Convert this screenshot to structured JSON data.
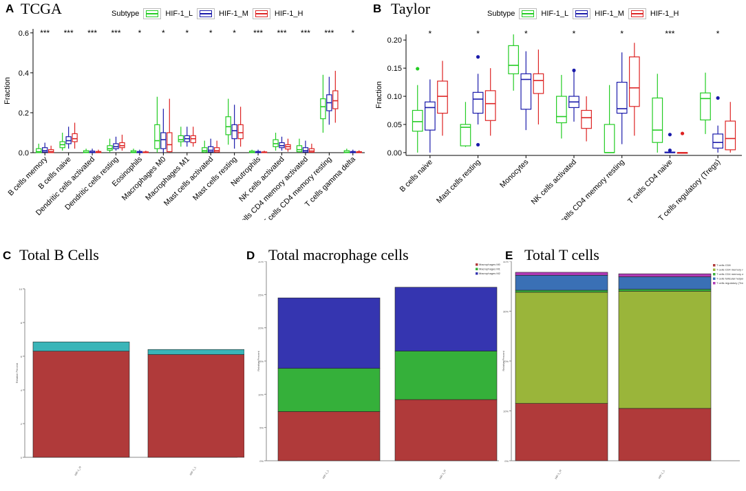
{
  "colors": {
    "L": "#22cc22",
    "M": "#1a1aaa",
    "H": "#dd2222"
  },
  "subtype_label": "Subtype",
  "subtypes": [
    "HIF-1_L",
    "HIF-1_M",
    "HIF-1_H"
  ],
  "panels": {
    "A": {
      "letter": "A",
      "title": "TCGA"
    },
    "B": {
      "letter": "B",
      "title": "Taylor"
    },
    "C": {
      "letter": "C",
      "title": "Total B Cells"
    },
    "D": {
      "letter": "D",
      "title": "Total macrophage cells"
    },
    "E": {
      "letter": "E",
      "title": "Total T cells"
    }
  },
  "chart_data": [
    {
      "id": "A",
      "type": "box",
      "title": "TCGA",
      "ylabel": "Fraction",
      "ylim": [
        0,
        0.62
      ],
      "yticks": [
        0.0,
        0.2,
        0.4,
        0.6
      ],
      "yticklabels": [
        "0.0",
        "0.2",
        "0.4",
        "0.6"
      ],
      "categories": [
        "B cells memory",
        "B cells naive",
        "Dendritic cells activated",
        "Dendritic cells resting",
        "Eosinophils",
        "Macrophages M0",
        "Macrophages M1",
        "Mast cells activated",
        "Mast cells resting",
        "Neutrophils",
        "NK cells activated",
        "T cells CD4 memory activated",
        "T cells CD4 memory resting",
        "T cells gamma delta"
      ],
      "significance": [
        "***",
        "***",
        "***",
        "***",
        "*",
        "*",
        "*",
        "*",
        "*",
        "***",
        "***",
        "***",
        "***",
        "*"
      ],
      "series": [
        {
          "name": "HIF-1_L",
          "boxes": [
            [
              0,
              0,
              0.005,
              0.02,
              0.045
            ],
            [
              0.01,
              0.025,
              0.04,
              0.055,
              0.1
            ],
            [
              0,
              0,
              0.002,
              0.01,
              0.02
            ],
            [
              0,
              0.012,
              0.02,
              0.035,
              0.07
            ],
            [
              0,
              0,
              0.003,
              0.01,
              0.02
            ],
            [
              0,
              0.02,
              0.06,
              0.14,
              0.28
            ],
            [
              0.03,
              0.055,
              0.065,
              0.085,
              0.13
            ],
            [
              0,
              0.003,
              0.01,
              0.025,
              0.06
            ],
            [
              0.04,
              0.09,
              0.13,
              0.18,
              0.27
            ],
            [
              0,
              0,
              0.002,
              0.008,
              0.015
            ],
            [
              0.01,
              0.03,
              0.045,
              0.065,
              0.1
            ],
            [
              0,
              0.005,
              0.015,
              0.035,
              0.07
            ],
            [
              0.1,
              0.17,
              0.23,
              0.27,
              0.39
            ],
            [
              0,
              0,
              0.002,
              0.01,
              0.02
            ]
          ]
        },
        {
          "name": "HIF-1_M",
          "boxes": [
            [
              0,
              0.003,
              0.01,
              0.025,
              0.05
            ],
            [
              0.02,
              0.045,
              0.06,
              0.08,
              0.13
            ],
            [
              0,
              0,
              0.002,
              0.008,
              0.02
            ],
            [
              0.01,
              0.02,
              0.03,
              0.045,
              0.08
            ],
            [
              0,
              0,
              0.002,
              0.006,
              0.015
            ],
            [
              0,
              0.02,
              0.065,
              0.1,
              0.22
            ],
            [
              0.03,
              0.055,
              0.07,
              0.085,
              0.13
            ],
            [
              0,
              0.004,
              0.012,
              0.03,
              0.07
            ],
            [
              0.02,
              0.07,
              0.11,
              0.14,
              0.24
            ],
            [
              0,
              0,
              0.002,
              0.006,
              0.015
            ],
            [
              0.01,
              0.025,
              0.035,
              0.05,
              0.08
            ],
            [
              0,
              0.003,
              0.01,
              0.025,
              0.06
            ],
            [
              0.14,
              0.21,
              0.25,
              0.29,
              0.38
            ],
            [
              0,
              0,
              0.002,
              0.006,
              0.015
            ]
          ]
        },
        {
          "name": "HIF-1_H",
          "boxes": [
            [
              0,
              0,
              0.005,
              0.015,
              0.035
            ],
            [
              0.02,
              0.055,
              0.07,
              0.095,
              0.15
            ],
            [
              0,
              0,
              0.002,
              0.006,
              0.015
            ],
            [
              0.01,
              0.025,
              0.035,
              0.05,
              0.09
            ],
            [
              0,
              0,
              0.002,
              0.004,
              0.01
            ],
            [
              0,
              0.005,
              0.04,
              0.1,
              0.27
            ],
            [
              0.03,
              0.05,
              0.07,
              0.085,
              0.13
            ],
            [
              0,
              0.003,
              0.01,
              0.025,
              0.06
            ],
            [
              0.03,
              0.07,
              0.1,
              0.14,
              0.23
            ],
            [
              0,
              0,
              0.001,
              0.004,
              0.01
            ],
            [
              0.005,
              0.018,
              0.03,
              0.04,
              0.07
            ],
            [
              0,
              0.002,
              0.008,
              0.02,
              0.045
            ],
            [
              0.15,
              0.22,
              0.26,
              0.31,
              0.41
            ],
            [
              0,
              0,
              0.002,
              0.005,
              0.012
            ]
          ]
        }
      ]
    },
    {
      "id": "B",
      "type": "box",
      "title": "Taylor",
      "ylabel": "Fraction",
      "ylim": [
        -0.005,
        0.21
      ],
      "yticks": [
        0,
        0.05,
        0.1,
        0.15,
        0.2
      ],
      "yticklabels": [
        "0.00",
        "0.05",
        "0.10",
        "0.15",
        "0.20"
      ],
      "categories": [
        "B cells naive",
        "Mast cells resting",
        "Monocytes",
        "NK cells activated",
        "T cells CD4 memory resting",
        "T cells CD4 naive",
        "T cells regulatory (Tregs)"
      ],
      "significance": [
        "*",
        "*",
        "*",
        "*",
        "*",
        "***",
        "*"
      ],
      "series": [
        {
          "name": "HIF-1_L",
          "boxes": [
            [
              0,
              0.038,
              0.055,
              0.075,
              0.12
            ],
            [
              0.01,
              0.012,
              0.045,
              0.05,
              0.09
            ],
            [
              0.11,
              0.14,
              0.155,
              0.19,
              0.21
            ],
            [
              0.025,
              0.053,
              0.064,
              0.1,
              0.138
            ],
            [
              0,
              0,
              0,
              0.05,
              0.12
            ],
            [
              0,
              0.018,
              0.04,
              0.097,
              0.14
            ],
            [
              0.033,
              0.058,
              0.096,
              0.106,
              0.142
            ]
          ]
        },
        {
          "name": "HIF-1_M",
          "boxes": [
            [
              0,
              0.04,
              0.08,
              0.09,
              0.13
            ],
            [
              0.05,
              0.07,
              0.095,
              0.107,
              0.14
            ],
            [
              0.04,
              0.077,
              0.13,
              0.14,
              0.18
            ],
            [
              0.055,
              0.08,
              0.09,
              0.1,
              0.145
            ],
            [
              0.015,
              0.07,
              0.078,
              0.125,
              0.178
            ],
            [
              0,
              0,
              0,
              0.001,
              0.002
            ],
            [
              0,
              0.008,
              0.018,
              0.033,
              0.048
            ]
          ]
        },
        {
          "name": "HIF-1_H",
          "boxes": [
            [
              0.03,
              0.07,
              0.1,
              0.127,
              0.163
            ],
            [
              0.03,
              0.057,
              0.087,
              0.11,
              0.15
            ],
            [
              0.05,
              0.105,
              0.128,
              0.14,
              0.183
            ],
            [
              0.02,
              0.043,
              0.062,
              0.075,
              0.1
            ],
            [
              0.03,
              0.082,
              0.115,
              0.17,
              0.195
            ],
            [
              0,
              0,
              0,
              0,
              0
            ],
            [
              0,
              0.005,
              0.025,
              0.056,
              0.09
            ]
          ]
        }
      ],
      "outliers": [
        {
          "cat": 0,
          "s": 0,
          "v": 0.149
        },
        {
          "cat": 1,
          "s": 1,
          "v": 0.17
        },
        {
          "cat": 1,
          "s": 1,
          "v": 0.014
        },
        {
          "cat": 3,
          "s": 1,
          "v": 0.146
        },
        {
          "cat": 5,
          "s": 1,
          "v": 0.032
        },
        {
          "cat": 5,
          "s": 1,
          "v": 0.004
        },
        {
          "cat": 5,
          "s": 2,
          "v": 0.034
        },
        {
          "cat": 6,
          "s": 1,
          "v": 0.097
        }
      ]
    },
    {
      "id": "C",
      "type": "stacked_bar",
      "title": "Total B Cells",
      "ylabel": "Relative Percent",
      "ylim": [
        0,
        10
      ],
      "yticks": [
        0,
        2,
        4,
        6,
        8,
        10
      ],
      "yticklabels": [
        "0",
        "2",
        "4",
        "6",
        "8",
        "10"
      ],
      "categories": [
        "HIF-1_H",
        "HIF-1_L"
      ],
      "series": [
        {
          "name": "B cells naive",
          "color": "#b03a3a",
          "values": [
            6.3,
            6.1
          ]
        },
        {
          "name": "B cells memory",
          "color": "#3ab5b8",
          "values": [
            0.55,
            0.3
          ]
        }
      ]
    },
    {
      "id": "D",
      "type": "stacked_bar",
      "title": "Total macrophage cells",
      "ylabel": "Relative Percent",
      "ylim": [
        0,
        30
      ],
      "yticks": [
        0,
        5,
        10,
        15,
        20,
        25,
        30
      ],
      "yticklabels": [
        "0%",
        "5%",
        "10%",
        "15%",
        "20%",
        "25%",
        "30%"
      ],
      "categories": [
        "HIF-1_L",
        "HIF-1_H"
      ],
      "legend": [
        "Macrophages M0",
        "Macrophages M1",
        "Macrophages M2"
      ],
      "series": [
        {
          "name": "Macrophages M0",
          "color": "#b03a3a",
          "values": [
            7.4,
            9.2
          ]
        },
        {
          "name": "Macrophages M1",
          "color": "#35b03a",
          "values": [
            6.5,
            7.3
          ]
        },
        {
          "name": "Macrophages M2",
          "color": "#3535b0",
          "values": [
            10.6,
            9.6
          ]
        }
      ]
    },
    {
      "id": "E",
      "type": "stacked_bar",
      "title": "Total T cells",
      "ylabel": "Relative Percent",
      "ylim": [
        0,
        40
      ],
      "yticks": [
        0,
        10,
        20,
        30,
        40
      ],
      "yticklabels": [
        "0%",
        "10%",
        "20%",
        "30%",
        "40%"
      ],
      "categories": [
        "HIF-1_H",
        "HIF-1_L"
      ],
      "legend": [
        "T cells CD8",
        "T cells CD4 memory resting",
        "T cells CD4 memory activated",
        "T cells follicular helper",
        "T cells regulatory (Tregs)"
      ],
      "series": [
        {
          "name": "T cells CD8",
          "color": "#b03a3a",
          "values": [
            11.5,
            10.5
          ]
        },
        {
          "name": "T cells CD4 memory resting",
          "color": "#9ab53a",
          "values": [
            22.3,
            23.5
          ]
        },
        {
          "name": "T cells CD4 memory activated",
          "color": "#35b03a",
          "values": [
            0.4,
            0.4
          ]
        },
        {
          "name": "T cells follicular helper",
          "color": "#3a70b5",
          "values": [
            3,
            2.5
          ]
        },
        {
          "name": "T cells regulatory (Tregs)",
          "color": "#b03ab5",
          "values": [
            0.6,
            0.6
          ]
        }
      ]
    }
  ]
}
